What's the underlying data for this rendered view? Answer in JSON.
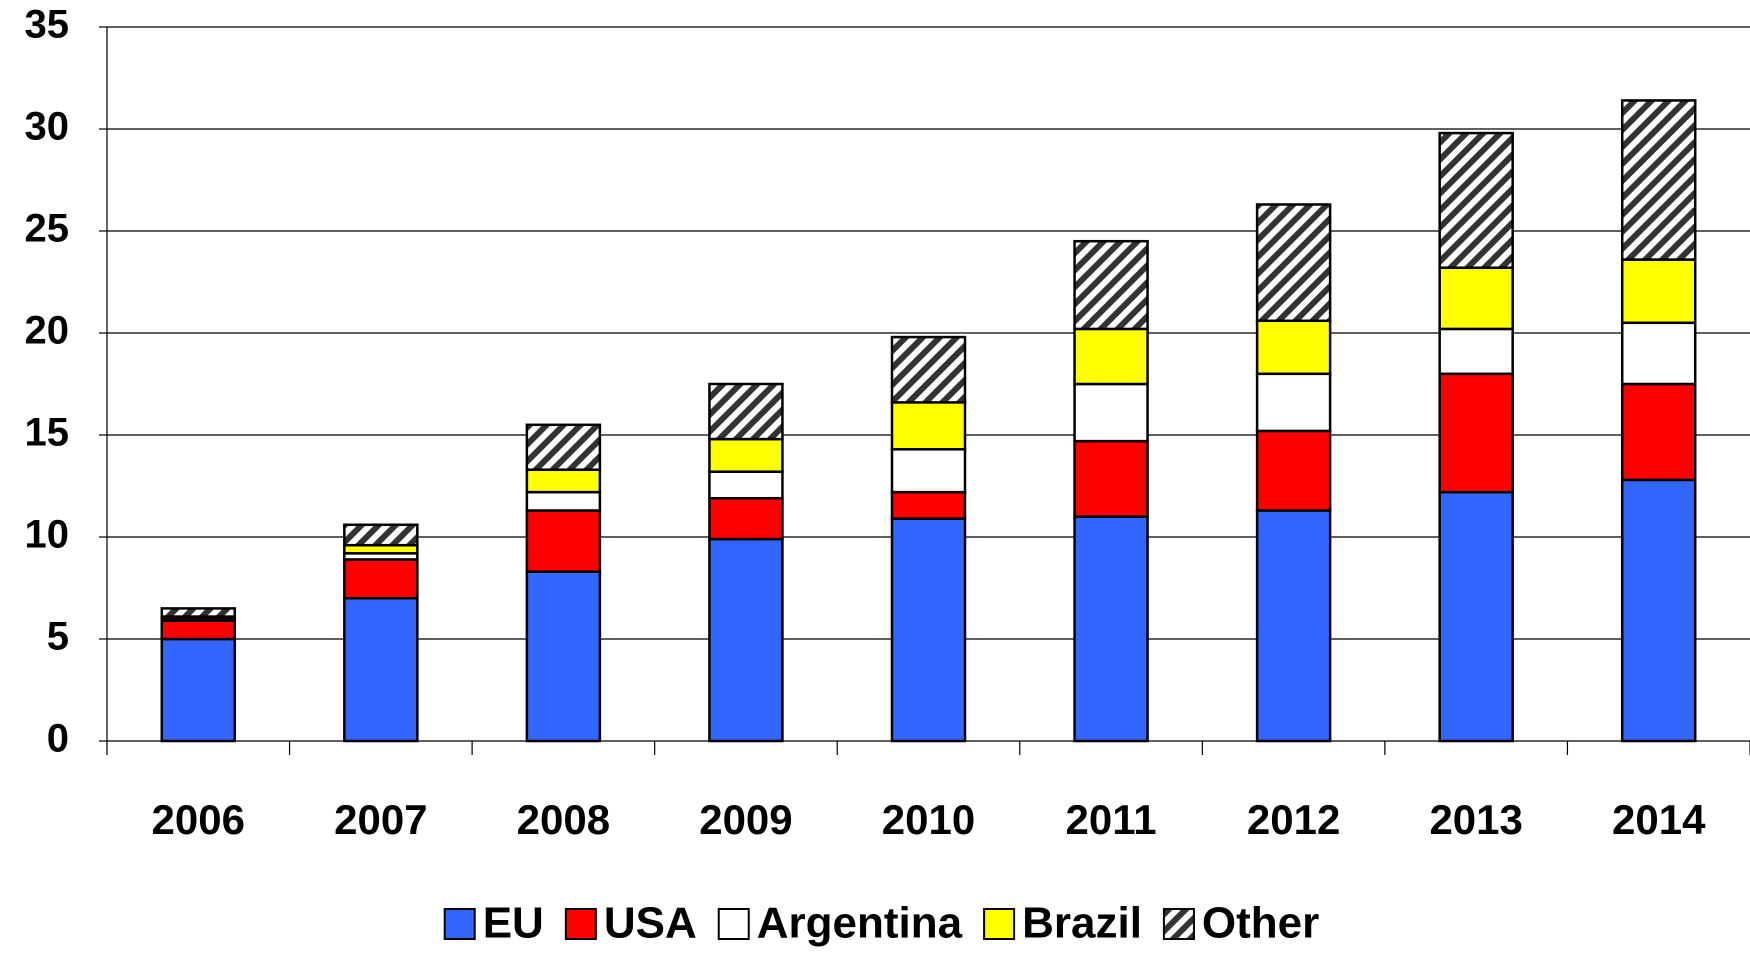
{
  "chart_data": {
    "type": "stacked_bar",
    "categories": [
      "2006",
      "2007",
      "2008",
      "2009",
      "2010",
      "2011",
      "2012",
      "2013",
      "2014"
    ],
    "series": [
      {
        "name": "EU",
        "color": "#3366ff",
        "values": [
          5.0,
          7.0,
          8.3,
          9.9,
          10.9,
          11.0,
          11.3,
          12.2,
          12.8
        ]
      },
      {
        "name": "USA",
        "color": "#ff0000",
        "values": [
          0.9,
          1.9,
          3.0,
          2.0,
          1.3,
          3.7,
          3.9,
          5.8,
          4.7
        ]
      },
      {
        "name": "Argentina",
        "color": "#ffffff",
        "values": [
          0.1,
          0.3,
          0.9,
          1.3,
          2.1,
          2.8,
          2.8,
          2.2,
          3.0
        ]
      },
      {
        "name": "Brazil",
        "color": "#ffff00",
        "values": [
          0.1,
          0.4,
          1.1,
          1.6,
          2.3,
          2.7,
          2.6,
          3.0,
          3.1
        ]
      },
      {
        "name": "Other",
        "color": "#333333",
        "pattern": "hatch",
        "values": [
          0.4,
          1.0,
          2.2,
          2.7,
          3.2,
          4.3,
          5.7,
          6.6,
          7.8
        ]
      }
    ],
    "ylim": [
      0,
      35
    ],
    "yticks": [
      0,
      5,
      10,
      15,
      20,
      25,
      30,
      35
    ],
    "grid": true,
    "legend": "bottom"
  }
}
